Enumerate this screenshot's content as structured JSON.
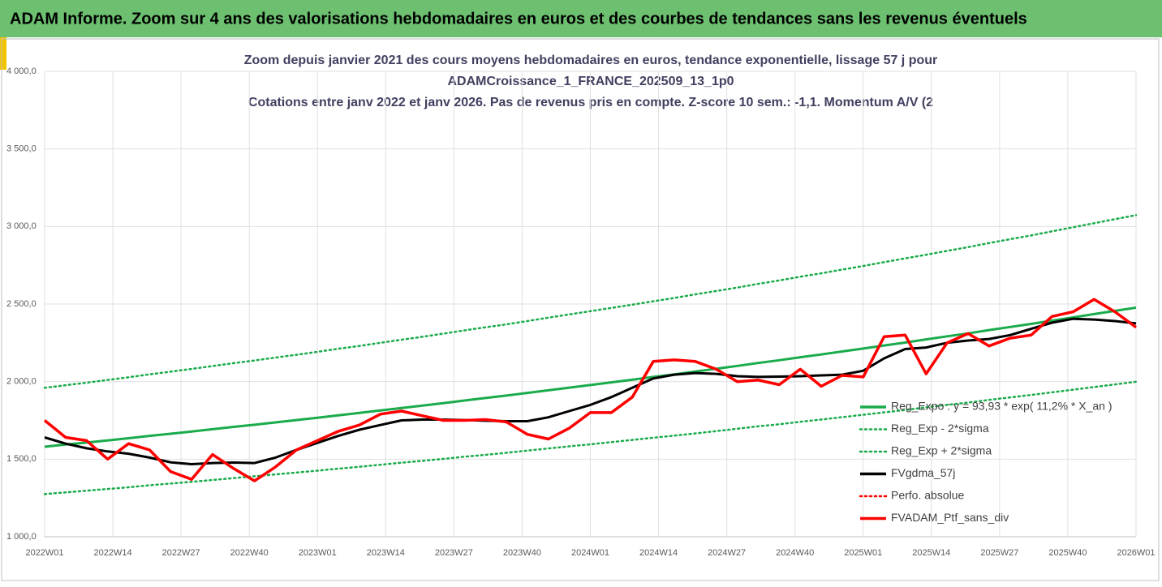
{
  "header": {
    "title": "ADAM Informe. Zoom sur 4 ans des valorisations hebdomadaires en euros et des courbes de tendances sans les revenus éventuels"
  },
  "chart_data": {
    "type": "line",
    "title_lines": [
      "Zoom depuis janvier 2021 des cours moyens hebdomadaires  en euros, tendance exponentielle, lissage 57 j pour",
      "ADAMCroissance_1_FRANCE_202509_13_1p0",
      "Cotations  entre janv 2022 et janv 2026. Pas de revenus pris en compte. Z-score 10 sem.: -1,1. Momentum A/V (2"
    ],
    "x": [
      0,
      4,
      8,
      12,
      16,
      20,
      24,
      28,
      32,
      36,
      40,
      44,
      48,
      52,
      56,
      60,
      64,
      68,
      72,
      76,
      80,
      84,
      88,
      92,
      96,
      100,
      104,
      108,
      112,
      116,
      120,
      124,
      128,
      132,
      136,
      140,
      144,
      148,
      152,
      156,
      160,
      164,
      168,
      172,
      176,
      180,
      184,
      188,
      192,
      196,
      200,
      204,
      208
    ],
    "xlim": [
      0,
      208
    ],
    "xticks": [
      {
        "value": 0,
        "label": "2022W01"
      },
      {
        "value": 13,
        "label": "2022W14"
      },
      {
        "value": 26,
        "label": "2022W27"
      },
      {
        "value": 39,
        "label": "2022W40"
      },
      {
        "value": 52,
        "label": "2023W01"
      },
      {
        "value": 65,
        "label": "2023W14"
      },
      {
        "value": 78,
        "label": "2023W27"
      },
      {
        "value": 91,
        "label": "2023W40"
      },
      {
        "value": 104,
        "label": "2024W01"
      },
      {
        "value": 117,
        "label": "2024W14"
      },
      {
        "value": 130,
        "label": "2024W27"
      },
      {
        "value": 143,
        "label": "2024W40"
      },
      {
        "value": 156,
        "label": "2025W01"
      },
      {
        "value": 169,
        "label": "2025W14"
      },
      {
        "value": 182,
        "label": "2025W27"
      },
      {
        "value": 195,
        "label": "2025W40"
      },
      {
        "value": 208,
        "label": "2026W01"
      }
    ],
    "ylim": [
      1000,
      4000
    ],
    "yticks": [
      {
        "value": 1000,
        "label": "1 000,0"
      },
      {
        "value": 1500,
        "label": "1 500,0"
      },
      {
        "value": 2000,
        "label": "2 000,0"
      },
      {
        "value": 2500,
        "label": "2 500,0"
      },
      {
        "value": 3000,
        "label": "3 000,0"
      },
      {
        "value": 3500,
        "label": "3 500,0"
      },
      {
        "value": 4000,
        "label": "4 000,0"
      }
    ],
    "grid": true,
    "legend": "right",
    "series": [
      {
        "name": "Reg_Expo : y = 93,93 * exp( 11,2% *  X_an )",
        "color": "#1aab4b",
        "style": "solid",
        "values": [
          1580,
          1594,
          1607,
          1621,
          1635,
          1650,
          1664,
          1678,
          1693,
          1708,
          1722,
          1737,
          1752,
          1767,
          1783,
          1798,
          1814,
          1830,
          1845,
          1861,
          1878,
          1894,
          1910,
          1927,
          1944,
          1961,
          1978,
          1995,
          2012,
          2030,
          2047,
          2065,
          2083,
          2101,
          2120,
          2138,
          2157,
          2175,
          2194,
          2213,
          2233,
          2252,
          2272,
          2292,
          2311,
          2332,
          2352,
          2372,
          2393,
          2414,
          2435,
          2456,
          2477
        ]
      },
      {
        "name": "Reg_Exp - 2*sigma",
        "color": "#1aab4b",
        "style": "dotted",
        "values": [
          1275,
          1286,
          1297,
          1308,
          1319,
          1332,
          1343,
          1354,
          1366,
          1378,
          1390,
          1402,
          1414,
          1426,
          1439,
          1451,
          1464,
          1477,
          1489,
          1502,
          1516,
          1528,
          1541,
          1555,
          1569,
          1583,
          1596,
          1610,
          1624,
          1638,
          1652,
          1666,
          1681,
          1696,
          1712,
          1725,
          1741,
          1755,
          1771,
          1786,
          1802,
          1817,
          1834,
          1850,
          1865,
          1882,
          1898,
          1914,
          1931,
          1948,
          1965,
          1982,
          1999
        ]
      },
      {
        "name": "Reg_Exp + 2*sigma",
        "color": "#1aab4b",
        "style": "dotted",
        "values": [
          1960,
          1977,
          1993,
          2011,
          2028,
          2047,
          2064,
          2082,
          2100,
          2119,
          2136,
          2155,
          2173,
          2192,
          2212,
          2230,
          2250,
          2270,
          2289,
          2309,
          2330,
          2350,
          2369,
          2390,
          2412,
          2433,
          2454,
          2475,
          2496,
          2518,
          2539,
          2562,
          2584,
          2606,
          2630,
          2652,
          2676,
          2698,
          2722,
          2745,
          2770,
          2794,
          2818,
          2843,
          2867,
          2893,
          2918,
          2942,
          2969,
          2995,
          3021,
          3047,
          3073
        ]
      },
      {
        "name": "FVgdma_57j",
        "color": "#000000",
        "style": "solid",
        "values": [
          1640,
          1600,
          1570,
          1550,
          1535,
          1510,
          1480,
          1468,
          1475,
          1478,
          1475,
          1510,
          1560,
          1605,
          1650,
          1690,
          1720,
          1750,
          1755,
          1755,
          1752,
          1748,
          1745,
          1745,
          1770,
          1810,
          1850,
          1900,
          1960,
          2020,
          2045,
          2055,
          2050,
          2035,
          2030,
          2032,
          2035,
          2040,
          2045,
          2070,
          2150,
          2210,
          2220,
          2250,
          2265,
          2275,
          2300,
          2340,
          2380,
          2405,
          2400,
          2390,
          2375
        ]
      },
      {
        "name": "Perfo. absolue",
        "color": "#ff0000",
        "style": "dotted",
        "values": [
          null,
          null,
          null,
          null,
          null,
          null,
          null,
          null,
          null,
          null,
          null,
          null,
          null,
          null,
          null,
          null,
          null,
          null,
          null,
          null,
          null,
          null,
          null,
          null,
          null,
          null,
          null,
          null,
          null,
          null,
          null,
          null,
          null,
          null,
          null,
          null,
          null,
          null,
          null,
          null,
          null,
          null,
          null,
          null,
          null,
          null,
          null,
          null,
          null,
          null,
          null,
          null,
          null
        ]
      },
      {
        "name": "FVADAM_Ptf_sans_div",
        "color": "#ff0000",
        "style": "solid",
        "values": [
          1750,
          1640,
          1620,
          1500,
          1600,
          1560,
          1420,
          1370,
          1530,
          1440,
          1360,
          1450,
          1560,
          1620,
          1680,
          1720,
          1790,
          1810,
          1780,
          1750,
          1750,
          1755,
          1740,
          1660,
          1630,
          1700,
          1800,
          1800,
          1900,
          2130,
          2140,
          2130,
          2080,
          2000,
          2010,
          1980,
          2080,
          1970,
          2040,
          2030,
          2290,
          2300,
          2050,
          2250,
          2310,
          2230,
          2280,
          2300,
          2420,
          2450,
          2530,
          2450,
          2350
        ]
      }
    ]
  }
}
